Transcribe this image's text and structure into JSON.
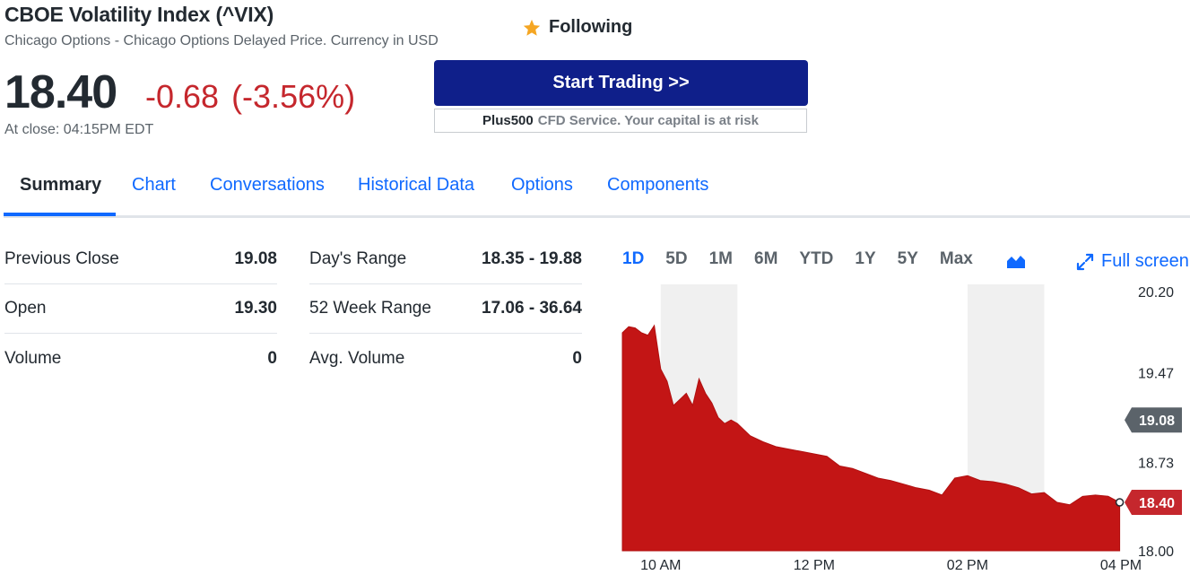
{
  "header": {
    "title": "CBOE Volatility Index (^VIX)",
    "subtitle": "Chicago Options - Chicago Options Delayed Price. Currency in USD",
    "follow_label": "Following"
  },
  "quote": {
    "price": "18.40",
    "change": "-0.68",
    "change_pct": "(-3.56%)",
    "close_time": "At close: 04:15PM EDT"
  },
  "ad": {
    "button_label": "Start Trading >>",
    "brand": "Plus500",
    "disclaimer": "CFD Service. Your capital is at risk"
  },
  "tabs": [
    "Summary",
    "Chart",
    "Conversations",
    "Historical Data",
    "Options",
    "Components"
  ],
  "stats_left": [
    {
      "label": "Previous Close",
      "value": "19.08"
    },
    {
      "label": "Open",
      "value": "19.30"
    },
    {
      "label": "Volume",
      "value": "0"
    }
  ],
  "stats_right": [
    {
      "label": "Day's Range",
      "value": "18.35 - 19.88"
    },
    {
      "label": "52 Week Range",
      "value": "17.06 - 36.64"
    },
    {
      "label": "Avg. Volume",
      "value": "0"
    }
  ],
  "chart_controls": {
    "ranges": [
      "1D",
      "5D",
      "1M",
      "6M",
      "YTD",
      "1Y",
      "5Y",
      "Max"
    ],
    "active_range": "1D",
    "chart_type_icon": "area-chart-icon",
    "fullscreen_label": "Full screen"
  },
  "colors": {
    "accent": "#0f69ff",
    "negative": "#c5272d",
    "area_fill": "#c31515",
    "button": "#0f1f8a",
    "prev_close_badge": "#5b636a"
  },
  "chart_data": {
    "type": "area",
    "x_ticks": [
      "10 AM",
      "12 PM",
      "02 PM",
      "04 PM"
    ],
    "y_ticks": [
      "20.20",
      "19.47",
      "18.73",
      "18.00"
    ],
    "ylim": [
      18.0,
      20.2
    ],
    "previous_close": "19.08",
    "last": "18.40",
    "shaded_hours": "alternating hourly bands",
    "series": [
      {
        "x": [
          "09:30",
          "09:35",
          "09:40",
          "09:45",
          "09:50",
          "09:55",
          "10:00",
          "10:05",
          "10:10",
          "10:15",
          "10:20",
          "10:25",
          "10:30",
          "10:35",
          "10:40",
          "10:45",
          "10:50",
          "10:55",
          "11:00",
          "11:10",
          "11:20",
          "11:30",
          "11:40",
          "11:50",
          "12:00",
          "12:10",
          "12:20",
          "12:30",
          "12:40",
          "12:50",
          "13:00",
          "13:10",
          "13:20",
          "13:30",
          "13:40",
          "13:50",
          "14:00",
          "14:10",
          "14:20",
          "14:30",
          "14:40",
          "14:50",
          "15:00",
          "15:10",
          "15:20",
          "15:30",
          "15:40",
          "15:50",
          "15:59"
        ],
        "y": [
          19.8,
          19.85,
          19.84,
          19.8,
          19.78,
          19.86,
          19.5,
          19.4,
          19.2,
          19.25,
          19.3,
          19.2,
          19.42,
          19.3,
          19.22,
          19.1,
          19.05,
          19.08,
          19.05,
          18.95,
          18.9,
          18.86,
          18.84,
          18.82,
          18.8,
          18.78,
          18.7,
          18.68,
          18.64,
          18.6,
          18.58,
          18.55,
          18.52,
          18.5,
          18.46,
          18.6,
          18.62,
          18.58,
          18.57,
          18.55,
          18.52,
          18.47,
          18.48,
          18.4,
          18.38,
          18.45,
          18.46,
          18.45,
          18.4
        ]
      }
    ]
  }
}
